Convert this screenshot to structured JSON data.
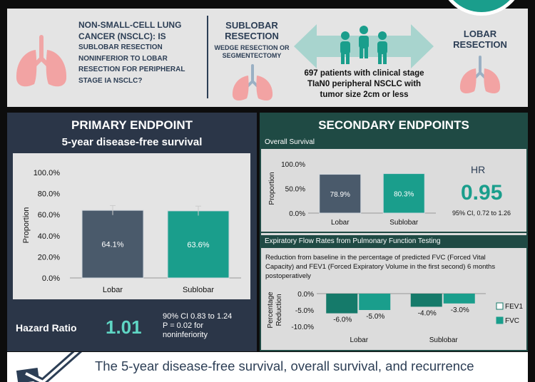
{
  "header": {
    "question_lines": [
      "NON-SMALL-CELL LUNG",
      "CANCER (NSCLC): IS",
      "SUBLOBAR RESECTION",
      "NONINFERIOR TO LOBAR",
      "RESECTION FOR PERIPHERAL",
      "STAGE IA NSCLC?"
    ],
    "sublobar_title_lines": [
      "SUBLOBAR",
      "RESECTION"
    ],
    "sublobar_sub_lines": [
      "WEDGE RESECTION OR",
      "SEGMENTECTOMY"
    ],
    "patients_lines": [
      "697 patients with clinical stage",
      "TIaN0 peripheral NSCLC with",
      "tumor size 2cm or less"
    ],
    "lobar_title_lines": [
      "LOBAR",
      "RESECTION"
    ]
  },
  "primary": {
    "title": "PRIMARY ENDPOINT",
    "subtitle": "5-year disease-free survival",
    "hazard_label": "Hazard Ratio",
    "hazard_value": "1.01",
    "ci_lines": [
      "90% CI 0.83 to 1.24",
      "P = 0.02 for",
      "noninferiority"
    ]
  },
  "secondary": {
    "title": "SECONDARY ENDPOINTS",
    "os_header": "Overall Survival",
    "hr_label": "HR",
    "hr_value": "0.95",
    "hr_ci": "95% CI, 0.72 to 1.26",
    "pft_header": "Expiratory Flow Rates from Pulmonary Function Testing",
    "pft_desc_lines": [
      "Reduction from baseline in the percentage of predicted FVC (Forced Vital",
      "Capacity) and FEV1 (Forced Expiratory Volume in the first second) 6 months",
      "postoperatively"
    ]
  },
  "banner": {
    "text": "The 5-year disease-free survival, overall survival, and recurrence"
  },
  "colors": {
    "lobar": "#4a5a6b",
    "sublobar": "#1a9e8c",
    "navy": "#2c3e55",
    "fev1": "#157a6a",
    "fvc": "#1a9e8c"
  },
  "chart_data": [
    {
      "type": "bar",
      "title": "5-year disease-free survival",
      "categories": [
        "Lobar",
        "Sublobar"
      ],
      "values": [
        64.1,
        63.6
      ],
      "value_labels": [
        "64.1%",
        "63.6%"
      ],
      "ylabel": "Proportion",
      "ylim": [
        0,
        100
      ],
      "yticks": [
        "0.0%",
        "20.0%",
        "40.0%",
        "60.0%",
        "80.0%",
        "100.0%"
      ],
      "error_bars": true
    },
    {
      "type": "bar",
      "title": "Overall Survival",
      "categories": [
        "Lobar",
        "Sublobar"
      ],
      "values": [
        78.9,
        80.3
      ],
      "value_labels": [
        "78.9%",
        "80.3%"
      ],
      "ylabel": "Proportion",
      "ylim": [
        0,
        100
      ],
      "yticks": [
        "0.0%",
        "50.0%",
        "100.0%"
      ]
    },
    {
      "type": "bar",
      "title": "Expiratory Flow Rates from Pulmonary Function Testing",
      "categories": [
        "Lobar",
        "Sublobar"
      ],
      "series": [
        {
          "name": "FEV1",
          "values": [
            -6.0,
            -4.0
          ],
          "value_labels": [
            "-6.0%",
            "-4.0%"
          ]
        },
        {
          "name": "FVC",
          "values": [
            -5.0,
            -3.0
          ],
          "value_labels": [
            "-5.0%",
            "-3.0%"
          ]
        }
      ],
      "ylabel_lines": [
        "Percentage",
        "Reduction"
      ],
      "ylim": [
        -10,
        0
      ],
      "yticks": [
        "0.0%",
        "-5.0%",
        "-10.0%"
      ],
      "legend": "right"
    }
  ]
}
